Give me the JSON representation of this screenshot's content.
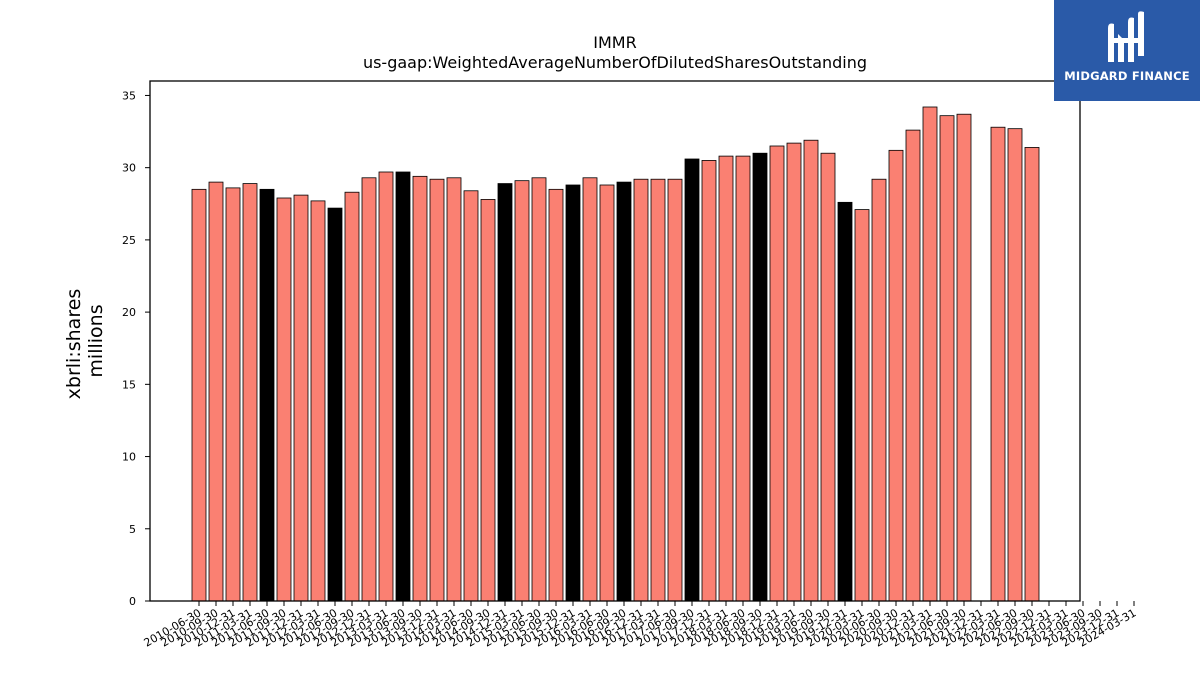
{
  "brand": {
    "name": "MIDGARD FINANCE",
    "background": "#2a5aa8",
    "icon": "midgard-logo-icon"
  },
  "chart_data": {
    "type": "bar",
    "title": "IMMR",
    "subtitle": "us-gaap:WeightedAverageNumberOfDilutedSharesOutstanding",
    "ylabel": "xbrli:shares\nmillions",
    "xlabel": "",
    "ylim": [
      0,
      36
    ],
    "yticks": [
      0,
      5,
      10,
      15,
      20,
      25,
      30,
      35
    ],
    "grid": false,
    "colors": {
      "default": "#fa8072",
      "highlight": "#000000",
      "edge": "#000000"
    },
    "categories": [
      "2010-06-30",
      "2010-09-30",
      "2010-12-31",
      "2011-03-31",
      "2011-06-30",
      "2011-09-30",
      "2011-12-31",
      "2012-03-31",
      "2012-06-30",
      "2012-09-30",
      "2012-12-31",
      "2013-03-31",
      "2013-06-30",
      "2013-09-30",
      "2013-12-31",
      "2014-03-31",
      "2014-06-30",
      "2014-09-30",
      "2014-12-31",
      "2015-03-31",
      "2015-06-30",
      "2015-09-30",
      "2015-12-31",
      "2016-03-31",
      "2016-06-30",
      "2016-09-30",
      "2016-12-31",
      "2017-03-31",
      "2017-06-30",
      "2017-09-30",
      "2017-12-31",
      "2018-03-31",
      "2018-06-30",
      "2018-09-30",
      "2018-12-31",
      "2019-03-31",
      "2019-06-30",
      "2019-09-30",
      "2019-12-31",
      "2020-03-31",
      "2020-06-30",
      "2020-09-30",
      "2020-12-31",
      "2021-03-31",
      "2021-06-30",
      "2021-09-30",
      "2021-12-31",
      "2022-03-31",
      "2022-06-30",
      "2022-09-30",
      "2022-12-31",
      "2023-03-31",
      "2023-06-30",
      "2023-09-30",
      "2023-12-31",
      "2024-03-31"
    ],
    "x_tick_labels": [
      "2010-06-30",
      "2010-09-30",
      "2010-12-31",
      "2011-03-31",
      "2011-06-30",
      "2011-09-30",
      "2011-12-31",
      "2012-03-31",
      "2012-06-30",
      "2012-09-30",
      "2012-12-31",
      "2013-03-31",
      "2013-06-30",
      "2013-09-30",
      "2013-12-31",
      "2014-03-31",
      "2014-06-30",
      "2014-09-30",
      "2014-12-31",
      "2015-03-31",
      "2015-06-30",
      "2015-09-30",
      "2015-12-31",
      "2016-03-31",
      "2016-06-30",
      "2016-09-30",
      "2016-12-31",
      "2017-03-31",
      "2017-06-30",
      "2017-09-30",
      "2017-12-31",
      "2018-03-31",
      "2018-06-30",
      "2018-09-30",
      "2018-12-31",
      "2019-03-31",
      "2019-06-30",
      "2019-09-30",
      "2019-12-31",
      "2020-03-31",
      "2020-06-30",
      "2020-09-30",
      "2020-12-31",
      "2021-03-31",
      "2021-06-30",
      "2021-09-30",
      "2021-12-31",
      "2022-03-31",
      "2022-06-30",
      "2022-09-30",
      "2022-12-31",
      "2023-03-31",
      "2023-06-30",
      "2023-09-30",
      "2023-12-31",
      "2024-03-31"
    ],
    "values": [
      28.5,
      29.0,
      28.6,
      28.9,
      28.5,
      27.9,
      28.1,
      27.7,
      27.2,
      28.3,
      29.3,
      29.7,
      29.7,
      29.4,
      29.2,
      29.3,
      28.4,
      27.8,
      28.9,
      29.1,
      29.3,
      28.5,
      28.8,
      29.3,
      28.8,
      29.0,
      29.2,
      29.2,
      29.2,
      30.6,
      30.5,
      30.8,
      30.8,
      31.0,
      31.5,
      31.7,
      31.9,
      31.0,
      27.6,
      27.1,
      29.2,
      31.2,
      32.6,
      34.2,
      33.6,
      33.7,
      null,
      32.8,
      32.7,
      31.4,
      null,
      null,
      null,
      null,
      null,
      null
    ],
    "highlighted": [
      "2011-06-30",
      "2012-06-30",
      "2013-06-30",
      "2014-12-31",
      "2015-12-31",
      "2016-09-30",
      "2017-09-30",
      "2018-09-30",
      "2019-12-31"
    ]
  }
}
